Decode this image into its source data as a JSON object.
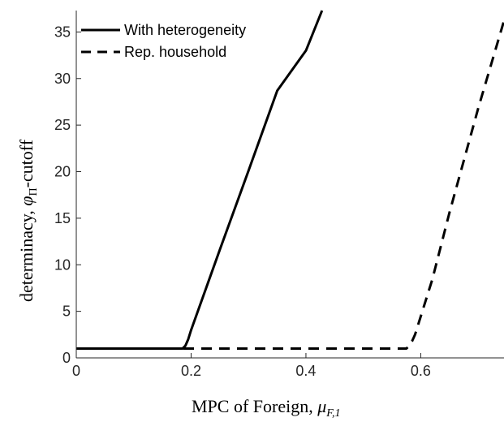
{
  "chart_data": {
    "type": "line",
    "xlabel": "MPC of Foreign, μ_{F,1}",
    "ylabel": "determinacy, φ_Π-cutoff",
    "xlim": [
      0,
      0.745
    ],
    "ylim": [
      0,
      37.3
    ],
    "xticks": [
      0,
      0.2,
      0.4,
      0.6
    ],
    "xtick_labels": [
      "0",
      "0.2",
      "0.4",
      "0.6"
    ],
    "yticks": [
      0,
      5,
      10,
      15,
      20,
      25,
      30,
      35
    ],
    "ytick_labels": [
      "0",
      "5",
      "10",
      "15",
      "20",
      "25",
      "30",
      "35"
    ],
    "grid": false,
    "legend_position": "top-left",
    "series": [
      {
        "name": "With heterogeneity",
        "style": "solid",
        "color": "#000000",
        "x": [
          0,
          0.1,
          0.185,
          0.19,
          0.195,
          0.2,
          0.25,
          0.3,
          0.35,
          0.4,
          0.428
        ],
        "y": [
          1,
          1,
          1,
          1.3,
          2.0,
          3.0,
          11.6,
          20.1,
          28.7,
          33.0,
          37.3
        ]
      },
      {
        "name": "Rep. household",
        "style": "dashed",
        "color": "#000000",
        "x": [
          0,
          0.2,
          0.4,
          0.575,
          0.58,
          0.585,
          0.59,
          0.62,
          0.65,
          0.7,
          0.745
        ],
        "y": [
          1,
          1,
          1,
          1,
          1.3,
          1.8,
          2.5,
          8.4,
          15.6,
          26.8,
          36.2
        ]
      }
    ]
  },
  "legend": {
    "entries": [
      "With heterogeneity",
      "Rep. household"
    ]
  },
  "axis_text": {
    "xlabel_main": "MPC of Foreign, ",
    "xlabel_symbol": "μ",
    "xlabel_sub": "F,1",
    "ylabel_main": "determinacy, ",
    "ylabel_symbol": "φ",
    "ylabel_sub": "Π",
    "ylabel_tail": "-cutoff"
  }
}
